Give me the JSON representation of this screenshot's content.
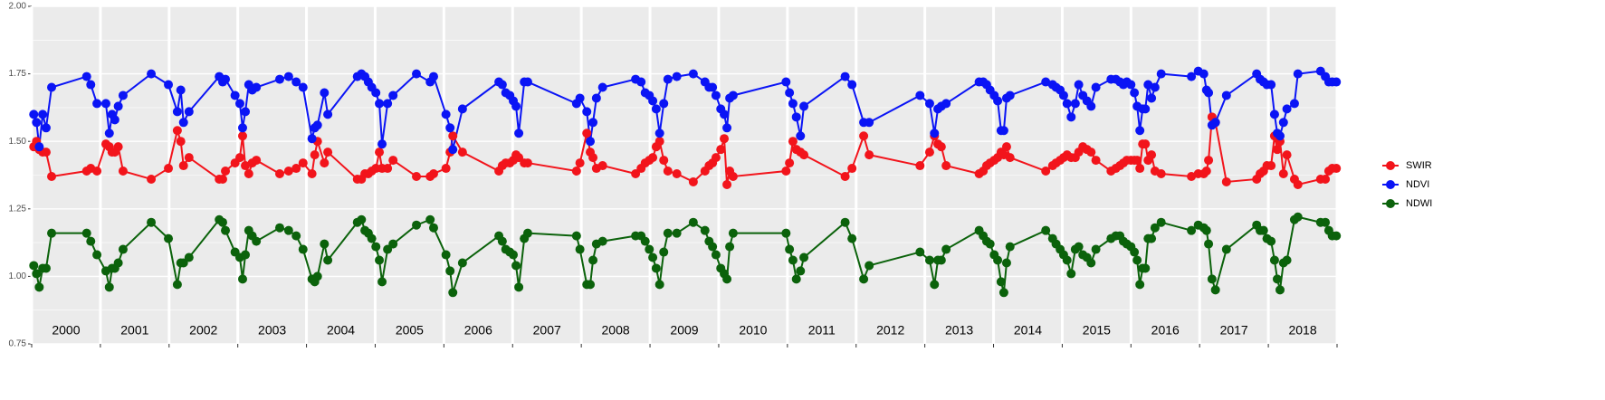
{
  "chart_data": {
    "type": "line",
    "x": [
      2000.03,
      2000.07,
      2000.11,
      2000.16,
      2000.21,
      2000.29,
      2000.8,
      2000.86,
      2000.95,
      2001.08,
      2001.13,
      2001.17,
      2001.21,
      2001.26,
      2001.33,
      2001.74,
      2001.99,
      2002.12,
      2002.17,
      2002.21,
      2002.29,
      2002.73,
      2002.78,
      2002.82,
      2002.96,
      2003.03,
      2003.07,
      2003.11,
      2003.16,
      2003.21,
      2003.27,
      2003.61,
      2003.74,
      2003.85,
      2003.95,
      2004.08,
      2004.12,
      2004.16,
      2004.26,
      2004.31,
      2004.74,
      2004.8,
      2004.85,
      2004.9,
      2004.95,
      2005.01,
      2005.06,
      2005.1,
      2005.18,
      2005.26,
      2005.6,
      2005.8,
      2005.85,
      2006.03,
      2006.09,
      2006.13,
      2006.27,
      2006.8,
      2006.85,
      2006.9,
      2006.96,
      2007.01,
      2007.05,
      2007.09,
      2007.17,
      2007.22,
      2007.93,
      2007.98,
      2008.08,
      2008.13,
      2008.17,
      2008.22,
      2008.31,
      2008.79,
      2008.87,
      2008.93,
      2008.99,
      2009.04,
      2009.09,
      2009.14,
      2009.2,
      2009.26,
      2009.39,
      2009.63,
      2009.8,
      2009.86,
      2009.91,
      2009.96,
      2010.03,
      2010.08,
      2010.12,
      2010.16,
      2010.21,
      2010.98,
      2011.03,
      2011.08,
      2011.13,
      2011.19,
      2011.24,
      2011.84,
      2011.94,
      2012.11,
      2012.19,
      2012.93,
      2013.07,
      2013.14,
      2013.19,
      2013.24,
      2013.31,
      2013.79,
      2013.85,
      2013.9,
      2013.95,
      2014.01,
      2014.06,
      2014.11,
      2014.15,
      2014.19,
      2014.24,
      2014.76,
      2014.86,
      2014.91,
      2014.97,
      2015.02,
      2015.07,
      2015.13,
      2015.19,
      2015.24,
      2015.3,
      2015.36,
      2015.42,
      2015.49,
      2015.71,
      2015.78,
      2015.84,
      2015.89,
      2015.94,
      2016.0,
      2016.05,
      2016.09,
      2016.13,
      2016.17,
      2016.21,
      2016.25,
      2016.3,
      2016.35,
      2016.44,
      2016.88,
      2016.98,
      2017.06,
      2017.1,
      2017.13,
      2017.18,
      2017.23,
      2017.39,
      2017.83,
      2017.88,
      2017.93,
      2017.98,
      2018.04,
      2018.09,
      2018.13,
      2018.17,
      2018.22,
      2018.27,
      2018.38,
      2018.43,
      2018.76,
      2018.83,
      2018.88,
      2018.93,
      2018.99
    ],
    "series": [
      {
        "name": "SWIR",
        "color": "#f2141b",
        "values": [
          1.48,
          1.5,
          1.47,
          1.46,
          1.46,
          1.37,
          1.39,
          1.4,
          1.39,
          1.49,
          1.48,
          1.46,
          1.46,
          1.48,
          1.39,
          1.36,
          1.4,
          1.54,
          1.5,
          1.41,
          1.44,
          1.36,
          1.36,
          1.39,
          1.42,
          1.44,
          1.52,
          1.41,
          1.38,
          1.42,
          1.43,
          1.38,
          1.39,
          1.4,
          1.42,
          1.38,
          1.45,
          1.5,
          1.42,
          1.46,
          1.36,
          1.36,
          1.38,
          1.38,
          1.39,
          1.4,
          1.46,
          1.4,
          1.4,
          1.43,
          1.37,
          1.37,
          1.38,
          1.4,
          1.46,
          1.52,
          1.46,
          1.39,
          1.41,
          1.42,
          1.42,
          1.43,
          1.45,
          1.44,
          1.42,
          1.42,
          1.39,
          1.42,
          1.53,
          1.46,
          1.44,
          1.4,
          1.41,
          1.38,
          1.4,
          1.42,
          1.43,
          1.44,
          1.48,
          1.5,
          1.43,
          1.39,
          1.38,
          1.35,
          1.39,
          1.41,
          1.42,
          1.44,
          1.47,
          1.51,
          1.34,
          1.39,
          1.37,
          1.39,
          1.42,
          1.5,
          1.47,
          1.46,
          1.45,
          1.37,
          1.4,
          1.52,
          1.45,
          1.41,
          1.46,
          1.52,
          1.49,
          1.48,
          1.41,
          1.38,
          1.39,
          1.41,
          1.42,
          1.43,
          1.44,
          1.46,
          1.45,
          1.48,
          1.44,
          1.39,
          1.41,
          1.42,
          1.43,
          1.44,
          1.45,
          1.44,
          1.44,
          1.46,
          1.48,
          1.47,
          1.46,
          1.43,
          1.39,
          1.4,
          1.41,
          1.42,
          1.43,
          1.43,
          1.43,
          1.43,
          1.4,
          1.49,
          1.49,
          1.43,
          1.45,
          1.39,
          1.38,
          1.37,
          1.38,
          1.38,
          1.39,
          1.43,
          1.59,
          1.57,
          1.35,
          1.36,
          1.38,
          1.39,
          1.41,
          1.41,
          1.52,
          1.47,
          1.5,
          1.38,
          1.45,
          1.36,
          1.34,
          1.36,
          1.36,
          1.39,
          1.4,
          1.4
        ]
      },
      {
        "name": "NDVI",
        "color": "#0a14f5",
        "values": [
          1.6,
          1.57,
          1.48,
          1.6,
          1.55,
          1.7,
          1.74,
          1.71,
          1.64,
          1.64,
          1.53,
          1.6,
          1.58,
          1.63,
          1.67,
          1.75,
          1.71,
          1.61,
          1.69,
          1.57,
          1.61,
          1.74,
          1.72,
          1.73,
          1.67,
          1.64,
          1.55,
          1.61,
          1.71,
          1.69,
          1.7,
          1.73,
          1.74,
          1.72,
          1.7,
          1.51,
          1.55,
          1.56,
          1.68,
          1.6,
          1.74,
          1.75,
          1.74,
          1.72,
          1.7,
          1.68,
          1.64,
          1.49,
          1.64,
          1.67,
          1.75,
          1.72,
          1.74,
          1.6,
          1.55,
          1.47,
          1.62,
          1.72,
          1.71,
          1.68,
          1.67,
          1.65,
          1.63,
          1.53,
          1.72,
          1.72,
          1.64,
          1.66,
          1.61,
          1.5,
          1.57,
          1.66,
          1.7,
          1.73,
          1.72,
          1.68,
          1.67,
          1.65,
          1.62,
          1.53,
          1.64,
          1.73,
          1.74,
          1.75,
          1.72,
          1.7,
          1.7,
          1.67,
          1.62,
          1.6,
          1.55,
          1.66,
          1.67,
          1.72,
          1.68,
          1.64,
          1.59,
          1.52,
          1.63,
          1.74,
          1.71,
          1.57,
          1.57,
          1.67,
          1.64,
          1.53,
          1.62,
          1.63,
          1.64,
          1.72,
          1.72,
          1.71,
          1.69,
          1.67,
          1.65,
          1.54,
          1.54,
          1.66,
          1.67,
          1.72,
          1.71,
          1.7,
          1.69,
          1.67,
          1.64,
          1.59,
          1.64,
          1.71,
          1.67,
          1.65,
          1.63,
          1.7,
          1.73,
          1.73,
          1.72,
          1.71,
          1.72,
          1.71,
          1.68,
          1.63,
          1.54,
          1.62,
          1.62,
          1.71,
          1.66,
          1.7,
          1.75,
          1.74,
          1.76,
          1.75,
          1.69,
          1.68,
          1.56,
          1.57,
          1.67,
          1.75,
          1.73,
          1.72,
          1.71,
          1.71,
          1.6,
          1.53,
          1.52,
          1.57,
          1.62,
          1.64,
          1.75,
          1.76,
          1.74,
          1.72,
          1.72,
          1.72
        ]
      },
      {
        "name": "NDWI",
        "color": "#0b620b",
        "values": [
          1.04,
          1.01,
          0.96,
          1.03,
          1.03,
          1.16,
          1.16,
          1.13,
          1.08,
          1.02,
          0.96,
          1.03,
          1.03,
          1.05,
          1.1,
          1.2,
          1.14,
          0.97,
          1.05,
          1.05,
          1.07,
          1.21,
          1.2,
          1.17,
          1.09,
          1.07,
          0.99,
          1.08,
          1.17,
          1.15,
          1.13,
          1.18,
          1.17,
          1.15,
          1.1,
          0.99,
          0.98,
          1.0,
          1.12,
          1.06,
          1.2,
          1.21,
          1.17,
          1.16,
          1.14,
          1.11,
          1.06,
          0.98,
          1.1,
          1.12,
          1.19,
          1.21,
          1.18,
          1.08,
          1.02,
          0.94,
          1.05,
          1.15,
          1.13,
          1.1,
          1.09,
          1.08,
          1.04,
          0.96,
          1.14,
          1.16,
          1.15,
          1.1,
          0.97,
          0.97,
          1.06,
          1.12,
          1.13,
          1.15,
          1.15,
          1.13,
          1.1,
          1.07,
          1.03,
          0.97,
          1.09,
          1.16,
          1.16,
          1.2,
          1.17,
          1.13,
          1.11,
          1.08,
          1.03,
          1.01,
          0.99,
          1.11,
          1.16,
          1.16,
          1.1,
          1.06,
          0.99,
          1.02,
          1.07,
          1.2,
          1.14,
          0.99,
          1.04,
          1.09,
          1.06,
          0.97,
          1.06,
          1.06,
          1.1,
          1.17,
          1.15,
          1.13,
          1.12,
          1.08,
          1.06,
          0.98,
          0.94,
          1.05,
          1.11,
          1.17,
          1.14,
          1.12,
          1.1,
          1.08,
          1.06,
          1.01,
          1.1,
          1.11,
          1.08,
          1.07,
          1.05,
          1.1,
          1.14,
          1.15,
          1.15,
          1.13,
          1.12,
          1.11,
          1.09,
          1.06,
          0.97,
          1.03,
          1.03,
          1.14,
          1.14,
          1.18,
          1.2,
          1.17,
          1.19,
          1.18,
          1.17,
          1.12,
          0.99,
          0.95,
          1.1,
          1.19,
          1.17,
          1.17,
          1.14,
          1.13,
          1.06,
          0.99,
          0.95,
          1.05,
          1.06,
          1.21,
          1.22,
          1.2,
          1.2,
          1.17,
          1.15,
          1.15
        ]
      }
    ],
    "xlim": [
      2000,
      2019
    ],
    "xticks": [
      {
        "value": 2000.5,
        "label": "2000"
      },
      {
        "value": 2001.5,
        "label": "2001"
      },
      {
        "value": 2002.5,
        "label": "2002"
      },
      {
        "value": 2003.5,
        "label": "2003"
      },
      {
        "value": 2004.5,
        "label": "2004"
      },
      {
        "value": 2005.5,
        "label": "2005"
      },
      {
        "value": 2006.5,
        "label": "2006"
      },
      {
        "value": 2007.5,
        "label": "2007"
      },
      {
        "value": 2008.5,
        "label": "2008"
      },
      {
        "value": 2009.5,
        "label": "2009"
      },
      {
        "value": 2010.5,
        "label": "2010"
      },
      {
        "value": 2011.5,
        "label": "2011"
      },
      {
        "value": 2012.5,
        "label": "2012"
      },
      {
        "value": 2013.5,
        "label": "2013"
      },
      {
        "value": 2014.5,
        "label": "2014"
      },
      {
        "value": 2015.5,
        "label": "2015"
      },
      {
        "value": 2016.5,
        "label": "2016"
      },
      {
        "value": 2017.5,
        "label": "2017"
      },
      {
        "value": 2018.5,
        "label": "2018"
      }
    ],
    "ylim": [
      0.75,
      2.0
    ],
    "yticks": [
      0.75,
      {
        "value": 1.0,
        "label": "1.00"
      },
      {
        "value": 1.25,
        "label": "1.25"
      },
      {
        "value": 1.5,
        "label": "1.50"
      },
      {
        "value": 1.75,
        "label": "1.75"
      },
      {
        "value": 2.0,
        "label": "2.00"
      }
    ],
    "grid": true,
    "legend": "right"
  }
}
